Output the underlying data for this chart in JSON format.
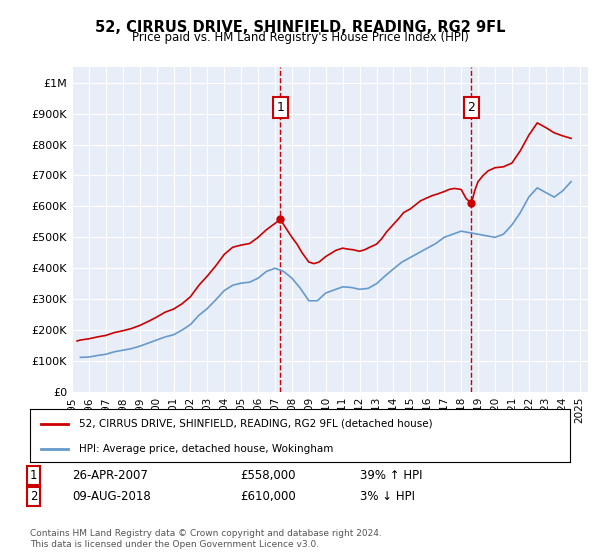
{
  "title": "52, CIRRUS DRIVE, SHINFIELD, READING, RG2 9FL",
  "subtitle": "Price paid vs. HM Land Registry's House Price Index (HPI)",
  "ylabel_ticks": [
    "£0",
    "£100K",
    "£200K",
    "£300K",
    "£400K",
    "£500K",
    "£600K",
    "£700K",
    "£800K",
    "£900K",
    "£1M"
  ],
  "ytick_values": [
    0,
    100000,
    200000,
    300000,
    400000,
    500000,
    600000,
    700000,
    800000,
    900000,
    1000000
  ],
  "ylim": [
    0,
    1050000
  ],
  "xlim_start": 1995.0,
  "xlim_end": 2025.5,
  "background_color": "#e8eef8",
  "plot_bg_color": "#e8eef8",
  "red_line_color": "#cc0000",
  "blue_line_color": "#6699cc",
  "marker1_x": 2007.32,
  "marker1_y": 558000,
  "marker2_x": 2018.61,
  "marker2_y": 610000,
  "marker1_label": "26-APR-2007",
  "marker1_price": "£558,000",
  "marker1_hpi": "39% ↑ HPI",
  "marker2_label": "09-AUG-2018",
  "marker2_price": "£610,000",
  "marker2_hpi": "3% ↓ HPI",
  "legend_line1": "52, CIRRUS DRIVE, SHINFIELD, READING, RG2 9FL (detached house)",
  "legend_line2": "HPI: Average price, detached house, Wokingham",
  "footer": "Contains HM Land Registry data © Crown copyright and database right 2024.\nThis data is licensed under the Open Government Licence v3.0.",
  "hpi_data": {
    "years": [
      1995.5,
      1996.0,
      1996.5,
      1997.0,
      1997.5,
      1998.0,
      1998.5,
      1999.0,
      1999.5,
      2000.0,
      2000.5,
      2001.0,
      2001.5,
      2002.0,
      2002.5,
      2003.0,
      2003.5,
      2004.0,
      2004.5,
      2005.0,
      2005.5,
      2006.0,
      2006.5,
      2007.0,
      2007.5,
      2008.0,
      2008.5,
      2009.0,
      2009.5,
      2010.0,
      2010.5,
      2011.0,
      2011.5,
      2012.0,
      2012.5,
      2013.0,
      2013.5,
      2014.0,
      2014.5,
      2015.0,
      2015.5,
      2016.0,
      2016.5,
      2017.0,
      2017.5,
      2018.0,
      2018.5,
      2019.0,
      2019.5,
      2020.0,
      2020.5,
      2021.0,
      2021.5,
      2022.0,
      2022.5,
      2023.0,
      2023.5,
      2024.0,
      2024.5
    ],
    "values": [
      112000,
      113000,
      118000,
      122000,
      130000,
      135000,
      140000,
      148000,
      158000,
      168000,
      178000,
      185000,
      200000,
      218000,
      248000,
      270000,
      298000,
      328000,
      345000,
      352000,
      355000,
      368000,
      390000,
      400000,
      390000,
      368000,
      335000,
      295000,
      295000,
      320000,
      330000,
      340000,
      338000,
      332000,
      335000,
      350000,
      375000,
      398000,
      420000,
      435000,
      450000,
      465000,
      480000,
      500000,
      510000,
      520000,
      515000,
      510000,
      505000,
      500000,
      510000,
      540000,
      580000,
      630000,
      660000,
      645000,
      630000,
      650000,
      680000
    ],
    "hpi_scaled_values": [
      112000,
      113000,
      118000,
      122000,
      130000,
      135000,
      140000,
      148000,
      158000,
      168000,
      178000,
      185000,
      200000,
      218000,
      248000,
      270000,
      298000,
      328000,
      345000,
      352000,
      355000,
      368000,
      390000,
      400000,
      390000,
      368000,
      335000,
      295000,
      295000,
      320000,
      330000,
      340000,
      338000,
      332000,
      335000,
      350000,
      375000,
      398000,
      420000,
      435000,
      450000,
      465000,
      480000,
      500000,
      510000,
      520000,
      515000,
      510000,
      505000,
      500000,
      510000,
      540000,
      580000,
      630000,
      660000,
      645000,
      630000,
      650000,
      680000
    ]
  },
  "red_data": {
    "years": [
      1995.3,
      1995.5,
      1996.0,
      1996.5,
      1997.0,
      1997.5,
      1998.0,
      1998.5,
      1999.0,
      1999.5,
      2000.0,
      2000.5,
      2001.0,
      2001.5,
      2002.0,
      2002.5,
      2003.0,
      2003.5,
      2004.0,
      2004.5,
      2005.0,
      2005.5,
      2006.0,
      2006.5,
      2007.0,
      2007.32,
      2007.5,
      2007.7,
      2008.0,
      2008.3,
      2008.6,
      2009.0,
      2009.3,
      2009.6,
      2010.0,
      2010.3,
      2010.6,
      2011.0,
      2011.3,
      2011.6,
      2012.0,
      2012.3,
      2012.6,
      2013.0,
      2013.3,
      2013.6,
      2014.0,
      2014.3,
      2014.6,
      2015.0,
      2015.3,
      2015.6,
      2016.0,
      2016.3,
      2016.6,
      2017.0,
      2017.3,
      2017.6,
      2018.0,
      2018.3,
      2018.61,
      2018.8,
      2019.0,
      2019.3,
      2019.6,
      2020.0,
      2020.5,
      2021.0,
      2021.5,
      2022.0,
      2022.5,
      2023.0,
      2023.5,
      2024.0,
      2024.5
    ],
    "values": [
      165000,
      168000,
      172000,
      178000,
      183000,
      192000,
      198000,
      205000,
      215000,
      228000,
      242000,
      258000,
      268000,
      285000,
      308000,
      345000,
      375000,
      408000,
      445000,
      468000,
      475000,
      480000,
      500000,
      525000,
      545000,
      558000,
      542000,
      525000,
      500000,
      478000,
      450000,
      420000,
      415000,
      420000,
      438000,
      448000,
      458000,
      465000,
      462000,
      460000,
      455000,
      460000,
      468000,
      478000,
      495000,
      518000,
      542000,
      560000,
      580000,
      592000,
      605000,
      618000,
      628000,
      635000,
      640000,
      648000,
      655000,
      658000,
      655000,
      625000,
      610000,
      650000,
      680000,
      700000,
      715000,
      725000,
      728000,
      740000,
      780000,
      830000,
      870000,
      855000,
      838000,
      828000,
      820000
    ]
  }
}
